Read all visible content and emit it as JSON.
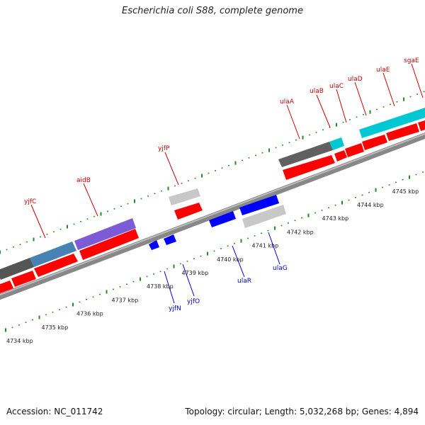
{
  "header": {
    "title": "Escherichia coli S88, complete genome"
  },
  "footer": {
    "accession": "Accession: NC_011742",
    "topology": "Topology: circular; Length: 5,032,268 bp; Genes: 4,894"
  },
  "colors": {
    "forward_label": "#cc0000",
    "reverse_label": "#0000cc",
    "cds": "#ff0000",
    "gene_dark": "#555555",
    "gene_light": "#c8c8c8",
    "gene_blue": "#0000ff",
    "gene_purple": "#7755cc",
    "gene_steelblue": "#4682b4",
    "gene_cyan": "#00c8d2",
    "backbone": "#888888",
    "ticks": "#228b22"
  },
  "genes_forward": [
    {
      "name": "yjfC"
    },
    {
      "name": "aidB"
    },
    {
      "name": "yjfP"
    },
    {
      "name": "ulaA"
    },
    {
      "name": "ulaB"
    },
    {
      "name": "ulaC"
    },
    {
      "name": "ulaD"
    },
    {
      "name": "ulaE"
    },
    {
      "name": "sgaE"
    }
  ],
  "genes_reverse": [
    {
      "name": "yjfN"
    },
    {
      "name": "yjfO"
    },
    {
      "name": "ulaR"
    },
    {
      "name": "ulaG"
    }
  ],
  "tick_labels": [
    "4734 kbp",
    "4735 kbp",
    "4736 kbp",
    "4737 kbp",
    "4738 kbp",
    "4739 kbp",
    "4740 kbp",
    "4741 kbp",
    "4742 kbp",
    "4743 kbp",
    "4744 kbp",
    "4745 kbp"
  ]
}
